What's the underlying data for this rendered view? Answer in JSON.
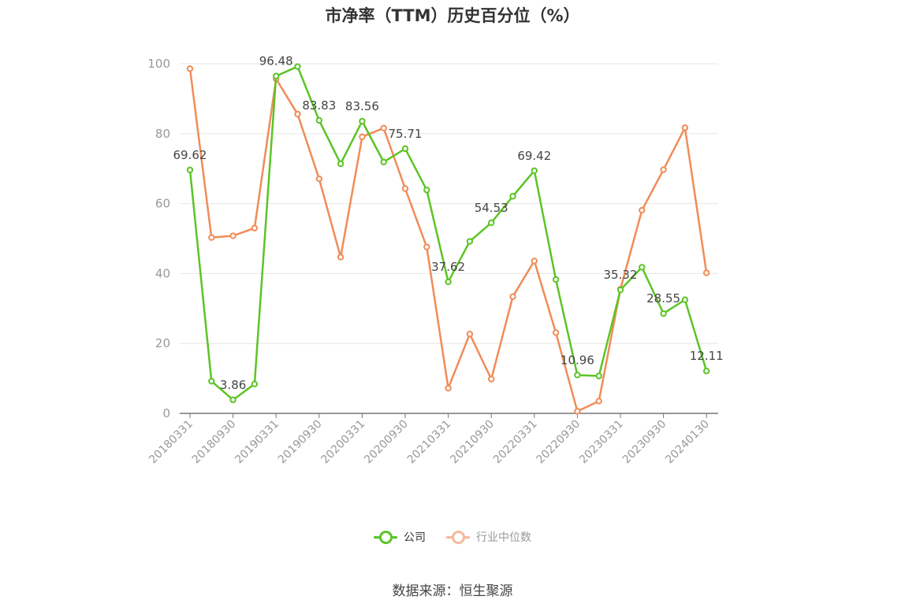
{
  "title": "市净率（TTM）历史百分位（%）",
  "source": "数据来源：恒生聚源",
  "colors": {
    "company": "#5cc426",
    "industry": "#f08c58",
    "grid": "#e6e6e6",
    "axis": "#777777",
    "label": "#999999",
    "value_label": "#444444"
  },
  "chart_data": {
    "type": "line",
    "title": "市净率（TTM）历史百分位（%）",
    "xlabel": "",
    "ylabel": "",
    "ylim": [
      0,
      100
    ],
    "yticks": [
      0,
      20,
      40,
      60,
      80,
      100
    ],
    "grid": true,
    "legend_position": "bottom",
    "x": [
      "20180331",
      "20180630",
      "20180930",
      "20181231",
      "20190331",
      "20190630",
      "20190930",
      "20191231",
      "20200331",
      "20200630",
      "20200930",
      "20201231",
      "20210331",
      "20210630",
      "20210930",
      "20211231",
      "20220331",
      "20220630",
      "20220930",
      "20221231",
      "20230331",
      "20230630",
      "20230930",
      "20231231",
      "20240130"
    ],
    "x_tick_labels": [
      "20180331",
      "20180930",
      "20190331",
      "20190930",
      "20200331",
      "20200930",
      "20210331",
      "20210930",
      "20220331",
      "20220930",
      "20230331",
      "20230930",
      "20240130"
    ],
    "series": [
      {
        "name": "公司",
        "values": [
          69.62,
          9.2,
          3.86,
          8.4,
          96.48,
          99.2,
          83.83,
          71.4,
          83.56,
          71.9,
          75.71,
          63.9,
          37.62,
          49.2,
          54.53,
          62.1,
          69.42,
          38.3,
          10.96,
          10.7,
          35.32,
          41.8,
          28.55,
          32.5,
          12.11
        ],
        "labeled_points": [
          {
            "index": 0,
            "text": "69.62"
          },
          {
            "index": 2,
            "text": "3.86"
          },
          {
            "index": 4,
            "text": "96.48"
          },
          {
            "index": 6,
            "text": "83.83"
          },
          {
            "index": 8,
            "text": "83.56"
          },
          {
            "index": 10,
            "text": "75.71"
          },
          {
            "index": 12,
            "text": "37.62"
          },
          {
            "index": 14,
            "text": "54.53"
          },
          {
            "index": 16,
            "text": "69.42"
          },
          {
            "index": 18,
            "text": "10.96"
          },
          {
            "index": 20,
            "text": "35.32"
          },
          {
            "index": 22,
            "text": "28.55"
          },
          {
            "index": 24,
            "text": "12.11"
          }
        ]
      },
      {
        "name": "行业中位数",
        "values": [
          98.6,
          50.3,
          50.8,
          53.0,
          95.7,
          85.6,
          67.1,
          44.7,
          79.1,
          81.6,
          64.3,
          47.6,
          7.2,
          22.7,
          9.8,
          33.4,
          43.6,
          23.1,
          0.6,
          3.5,
          35.5,
          58.1,
          69.7,
          81.7,
          40.2
        ]
      }
    ]
  }
}
